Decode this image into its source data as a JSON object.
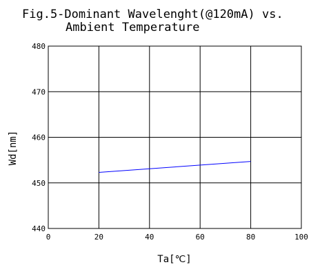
{
  "chart_data": {
    "type": "line",
    "title_line1": "Fig.5-Dominant Wavelenght(@120mA) vs.",
    "title_line2": "Ambient Temperature",
    "xlabel": "Ta[℃]",
    "ylabel": "Wd[nm]",
    "xlim": [
      0,
      100
    ],
    "ylim": [
      440,
      480
    ],
    "x_ticks": [
      0,
      20,
      40,
      60,
      80,
      100
    ],
    "y_ticks": [
      440,
      450,
      460,
      470,
      480
    ],
    "x_tick_labels": [
      "0",
      "20",
      "40",
      "60",
      "80",
      "100"
    ],
    "y_tick_labels": [
      "440",
      "450",
      "460",
      "470",
      "480"
    ],
    "grid": true,
    "series": [
      {
        "color": "#0000ff",
        "x": [
          20,
          80
        ],
        "y": [
          452.3,
          454.7
        ]
      }
    ]
  }
}
